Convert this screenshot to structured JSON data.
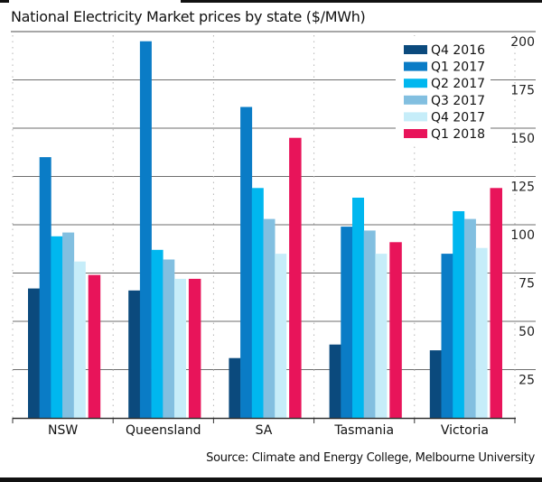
{
  "chart_data": {
    "type": "bar",
    "title": "National Electricity Market prices by state ($/MWh)",
    "xlabel": "",
    "ylabel": "",
    "ylim": [
      0,
      200
    ],
    "yticks": [
      25,
      50,
      75,
      100,
      125,
      150,
      175,
      200
    ],
    "grid": true,
    "legend_position": "top-right",
    "categories": [
      "NSW",
      "Queensland",
      "SA",
      "Tasmania",
      "Victoria"
    ],
    "series": [
      {
        "name": "Q4 2016",
        "color": "#0b4a7d",
        "values": [
          67,
          66,
          31,
          38,
          35
        ]
      },
      {
        "name": "Q1 2017",
        "color": "#0a7cc6",
        "values": [
          135,
          195,
          161,
          99,
          85
        ]
      },
      {
        "name": "Q2 2017",
        "color": "#00b7ef",
        "values": [
          94,
          87,
          119,
          114,
          107
        ]
      },
      {
        "name": "Q3 2017",
        "color": "#82bfe0",
        "values": [
          96,
          82,
          103,
          97,
          103
        ]
      },
      {
        "name": "Q4 2017",
        "color": "#c6edf9",
        "values": [
          81,
          72,
          85,
          85,
          88
        ]
      },
      {
        "name": "Q1 2018",
        "color": "#e8145a",
        "values": [
          74,
          72,
          145,
          91,
          119
        ]
      }
    ],
    "source": "Source: Climate and Energy College, Melbourne University"
  }
}
